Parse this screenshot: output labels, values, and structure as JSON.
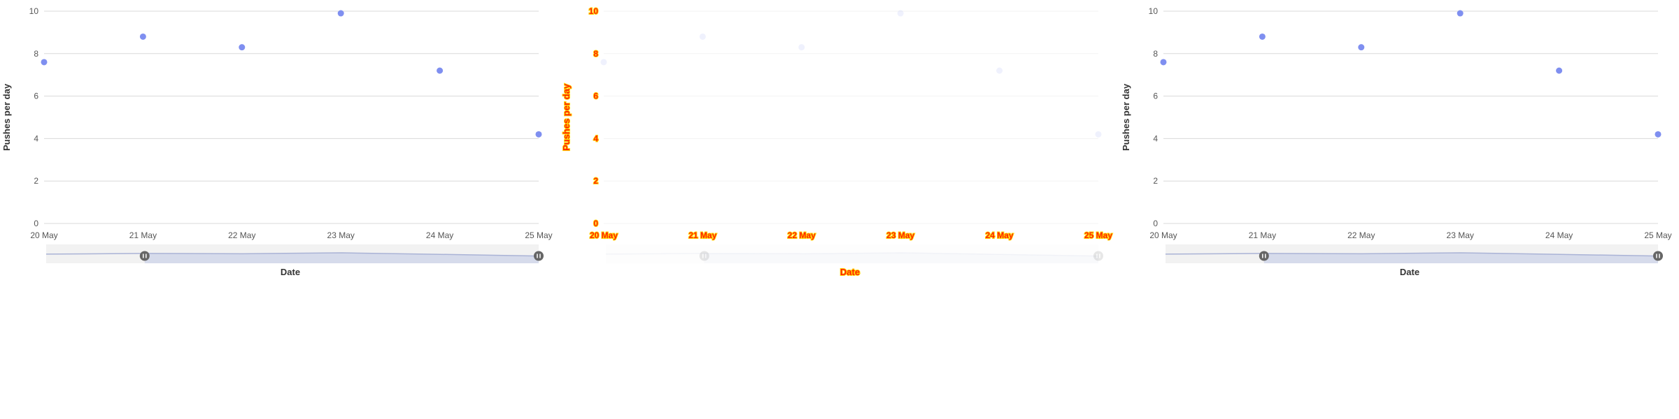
{
  "colors": {
    "point": "#7f8ff0",
    "grid": "#d9d9d9",
    "navigator_fill": "#d6dbeb",
    "navigator_line": "#aab3d6",
    "handle": "#666666",
    "ghost_text": "#ff2200",
    "ghost_outline": "#ffd400"
  },
  "chart_data": [
    {
      "type": "scatter",
      "title": "",
      "xlabel": "Date",
      "ylabel": "Pushes per day",
      "x": [
        "20 May",
        "21 May",
        "22 May",
        "23 May",
        "24 May",
        "25 May"
      ],
      "y": [
        7.6,
        8.8,
        8.3,
        9.9,
        7.2,
        4.2
      ],
      "x_tick_labels": [
        "20 May",
        "21 May",
        "22 May",
        "23 May",
        "24 May",
        "25 May"
      ],
      "y_tick_labels": [
        "0",
        "2",
        "4",
        "6",
        "8",
        "10"
      ],
      "ylim": [
        0,
        10
      ],
      "grid": true,
      "navigator": {
        "visible": true,
        "range_start": "21 May",
        "range_end": "25 May"
      }
    },
    {
      "type": "scatter",
      "title": "",
      "xlabel": "Date",
      "ylabel": "Pushes per day",
      "x": [
        "20 May",
        "21 May",
        "22 May",
        "23 May",
        "24 May",
        "25 May"
      ],
      "y": [
        7.6,
        8.8,
        8.3,
        9.9,
        7.2,
        4.2
      ],
      "x_tick_labels": [
        "20 May",
        "21 May",
        "22 May",
        "23 May",
        "24 May",
        "25 May"
      ],
      "y_tick_labels": [
        "0",
        "2",
        "4",
        "6",
        "8",
        "10"
      ],
      "ylim": [
        0,
        10
      ],
      "grid": true,
      "navigator": {
        "visible": true,
        "range_start": "21 May",
        "range_end": "25 May"
      }
    },
    {
      "type": "scatter",
      "title": "",
      "xlabel": "Date",
      "ylabel": "Pushes per day",
      "x": [
        "20 May",
        "21 May",
        "22 May",
        "23 May",
        "24 May",
        "25 May"
      ],
      "y": [
        7.6,
        8.8,
        8.3,
        9.9,
        7.2,
        4.2
      ],
      "x_tick_labels": [
        "20 May",
        "21 May",
        "22 May",
        "23 May",
        "24 May",
        "25 May"
      ],
      "y_tick_labels": [
        "0",
        "2",
        "4",
        "6",
        "8",
        "10"
      ],
      "ylim": [
        0,
        10
      ],
      "grid": true,
      "navigator": {
        "visible": true,
        "range_start": "21 May",
        "range_end": "25 May"
      }
    }
  ]
}
